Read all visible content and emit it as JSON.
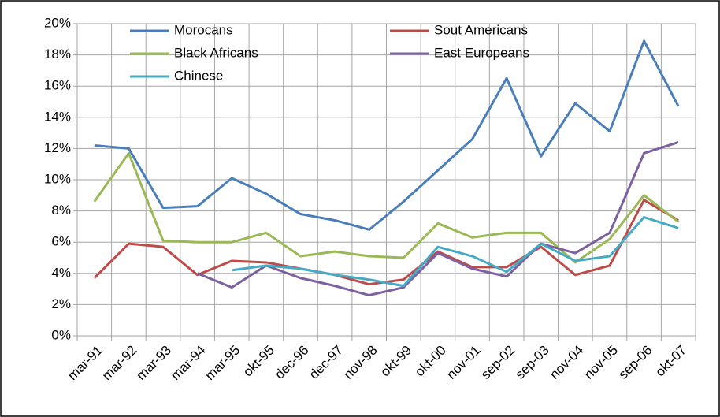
{
  "chart_data": {
    "type": "line",
    "categories": [
      "mar-91",
      "mar-92",
      "mar-93",
      "mar-94",
      "mar-95",
      "okt-95",
      "dec-96",
      "dec-97",
      "nov-98",
      "okt-99",
      "okt-00",
      "nov-01",
      "sep-02",
      "sep-03",
      "nov-04",
      "nov-05",
      "sep-06",
      "okt-07"
    ],
    "series": [
      {
        "name": "Morocans",
        "color": "#4a7ebb",
        "values": [
          12.2,
          12.0,
          8.2,
          8.3,
          10.1,
          9.1,
          7.8,
          7.4,
          6.8,
          8.6,
          10.6,
          12.6,
          16.5,
          11.5,
          14.9,
          13.1,
          18.9,
          14.7
        ]
      },
      {
        "name": "Sout Americans",
        "color": "#be4b48",
        "values": [
          3.7,
          5.9,
          5.7,
          3.9,
          4.8,
          4.7,
          4.3,
          3.9,
          3.3,
          3.6,
          5.4,
          4.4,
          4.4,
          5.7,
          3.9,
          4.5,
          8.7,
          7.4
        ]
      },
      {
        "name": "Black Africans",
        "color": "#98b954",
        "values": [
          8.6,
          11.7,
          6.1,
          6.0,
          6.0,
          6.6,
          5.1,
          5.4,
          5.1,
          5.0,
          7.2,
          6.3,
          6.6,
          6.6,
          4.7,
          6.2,
          9.0,
          7.3
        ]
      },
      {
        "name": "East Europeans",
        "color": "#7d60a0",
        "values": [
          null,
          null,
          null,
          4.0,
          3.1,
          4.5,
          3.7,
          3.2,
          2.6,
          3.1,
          5.3,
          4.3,
          3.8,
          5.9,
          5.3,
          6.6,
          11.7,
          12.4
        ]
      },
      {
        "name": "Chinese",
        "color": "#46aac5",
        "values": [
          null,
          null,
          null,
          null,
          4.2,
          4.5,
          4.3,
          3.9,
          3.6,
          3.2,
          5.7,
          5.1,
          4.1,
          5.9,
          4.8,
          5.1,
          7.6,
          6.9
        ]
      }
    ],
    "ylim": [
      0,
      20
    ],
    "yticks": [
      {
        "value": 0,
        "label": "0%"
      },
      {
        "value": 2,
        "label": "2%"
      },
      {
        "value": 4,
        "label": "4%"
      },
      {
        "value": 6,
        "label": "6%"
      },
      {
        "value": 8,
        "label": "8%"
      },
      {
        "value": 10,
        "label": "10%"
      },
      {
        "value": 12,
        "label": "12%"
      },
      {
        "value": 14,
        "label": "14%"
      },
      {
        "value": 16,
        "label": "16%"
      },
      {
        "value": 18,
        "label": "18%"
      },
      {
        "value": 20,
        "label": "20%"
      }
    ],
    "grid": true
  }
}
